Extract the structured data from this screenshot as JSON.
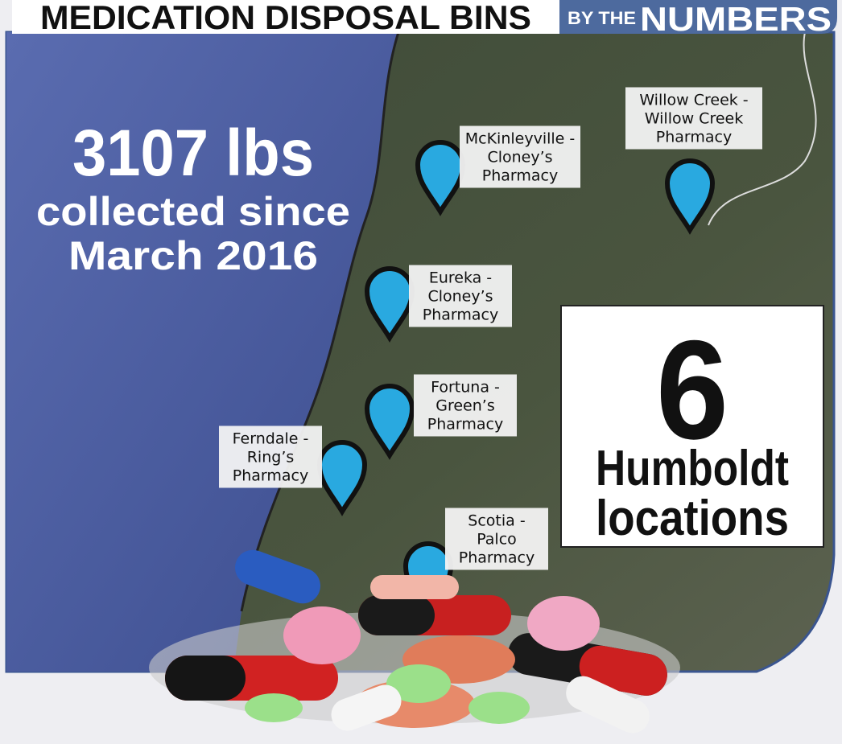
{
  "header": {
    "title": "MEDICATION DISPOSAL BINS",
    "by_the": "BY THE",
    "numbers": "NUMBERS"
  },
  "stat": {
    "amount": "3107 lbs",
    "line2": "collected since",
    "line3": "March 2016"
  },
  "count_box": {
    "number": "6",
    "line1": "Humboldt",
    "line2": "locations"
  },
  "locations": [
    {
      "lines": [
        "McKinleyville -",
        "Cloney’s",
        "Pharmacy"
      ]
    },
    {
      "lines": [
        "Willow Creek -",
        "Willow Creek",
        "Pharmacy"
      ]
    },
    {
      "lines": [
        "Eureka -",
        "Cloney’s",
        "Pharmacy"
      ]
    },
    {
      "lines": [
        "Fortuna -",
        "Green’s",
        "Pharmacy"
      ]
    },
    {
      "lines": [
        "Ferndale -",
        "Ring’s",
        "Pharmacy"
      ]
    },
    {
      "lines": [
        "Scotia -",
        "Palco",
        "Pharmacy"
      ]
    }
  ]
}
